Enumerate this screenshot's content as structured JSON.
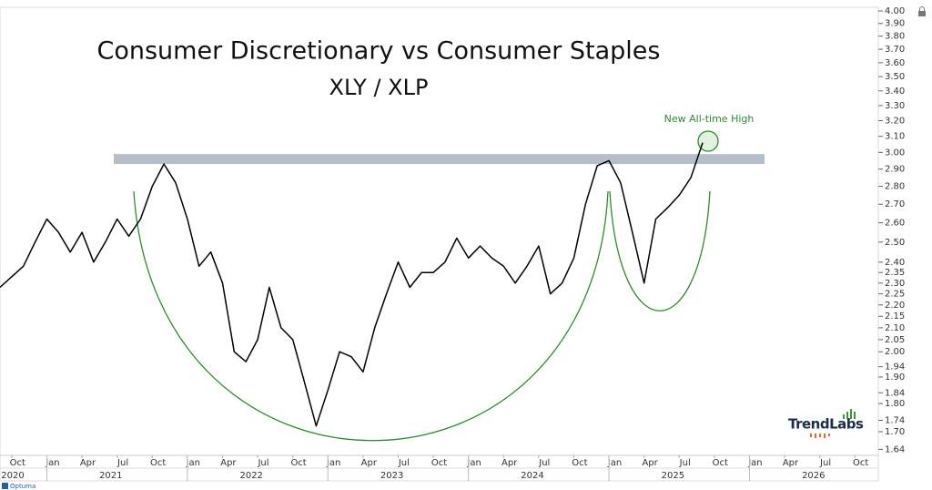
{
  "chart_data": {
    "type": "line",
    "title": "Consumer Discretionary vs Consumer Staples",
    "subtitle": "XLY / XLP",
    "annotation": "New All-time High",
    "brand": "TrendLabs",
    "source": "Optuma",
    "color": "#000000",
    "log_y": true,
    "x": [
      "2020-09",
      "2020-10",
      "2020-11",
      "2020-12",
      "2021-01",
      "2021-02",
      "2021-03",
      "2021-04",
      "2021-05",
      "2021-06",
      "2021-07",
      "2021-08",
      "2021-09",
      "2021-10",
      "2021-11",
      "2021-12",
      "2022-01",
      "2022-02",
      "2022-03",
      "2022-04",
      "2022-05",
      "2022-06",
      "2022-07",
      "2022-08",
      "2022-09",
      "2022-10",
      "2022-11",
      "2022-12",
      "2023-01",
      "2023-02",
      "2023-03",
      "2023-04",
      "2023-05",
      "2023-06",
      "2023-07",
      "2023-08",
      "2023-09",
      "2023-10",
      "2023-11",
      "2023-12",
      "2024-01",
      "2024-02",
      "2024-03",
      "2024-04",
      "2024-05",
      "2024-06",
      "2024-07",
      "2024-08",
      "2024-09",
      "2024-10",
      "2024-11",
      "2024-12",
      "2025-01",
      "2025-02",
      "2025-03",
      "2025-04",
      "2025-05",
      "2025-06",
      "2025-07",
      "2025-08",
      "2025-09"
    ],
    "values": [
      2.28,
      2.33,
      2.38,
      2.5,
      2.62,
      2.55,
      2.45,
      2.55,
      2.4,
      2.5,
      2.62,
      2.53,
      2.62,
      2.8,
      2.93,
      2.82,
      2.62,
      2.38,
      2.45,
      2.3,
      2.0,
      1.96,
      2.05,
      2.28,
      2.1,
      2.05,
      1.88,
      1.72,
      1.85,
      2.0,
      1.98,
      1.92,
      2.1,
      2.25,
      2.4,
      2.28,
      2.35,
      2.35,
      2.4,
      2.52,
      2.42,
      2.48,
      2.42,
      2.38,
      2.3,
      2.38,
      2.48,
      2.25,
      2.3,
      2.42,
      2.7,
      2.92,
      2.95,
      2.82,
      2.55,
      2.3,
      2.62,
      2.68,
      2.75,
      2.85,
      3.06
    ],
    "resistance_band": [
      2.93,
      2.99
    ],
    "xlim": [
      "2020-09",
      "2026-12"
    ],
    "xticks": [
      {
        "value": "2020-10",
        "label": "Oct"
      },
      {
        "value": "2021-01",
        "label": "Jan"
      },
      {
        "value": "2021-04",
        "label": "Apr"
      },
      {
        "value": "2021-07",
        "label": "Jul"
      },
      {
        "value": "2021-10",
        "label": "Oct"
      },
      {
        "value": "2022-01",
        "label": "Jan"
      },
      {
        "value": "2022-04",
        "label": "Apr"
      },
      {
        "value": "2022-07",
        "label": "Jul"
      },
      {
        "value": "2022-10",
        "label": "Oct"
      },
      {
        "value": "2023-01",
        "label": "Jan"
      },
      {
        "value": "2023-04",
        "label": "Apr"
      },
      {
        "value": "2023-07",
        "label": "Jul"
      },
      {
        "value": "2023-10",
        "label": "Oct"
      },
      {
        "value": "2024-01",
        "label": "Jan"
      },
      {
        "value": "2024-04",
        "label": "Apr"
      },
      {
        "value": "2024-07",
        "label": "Jul"
      },
      {
        "value": "2024-10",
        "label": "Oct"
      },
      {
        "value": "2025-01",
        "label": "Jan"
      },
      {
        "value": "2025-04",
        "label": "Apr"
      },
      {
        "value": "2025-07",
        "label": "Jul"
      },
      {
        "value": "2025-10",
        "label": "Oct"
      },
      {
        "value": "2026-01",
        "label": "Jan"
      },
      {
        "value": "2026-04",
        "label": "Apr"
      },
      {
        "value": "2026-07",
        "label": "Jul"
      },
      {
        "value": "2026-10",
        "label": "Oct"
      }
    ],
    "year_labels": [
      "2020",
      "2021",
      "2022",
      "2023",
      "2024",
      "2025",
      "2026"
    ],
    "ylim": [
      1.62,
      4.03
    ],
    "yticks": [
      1.64,
      {
        "value": 1.7,
        "label": "1.70"
      },
      1.74,
      {
        "value": 1.8,
        "label": "1.80"
      },
      1.84,
      {
        "value": 1.9,
        "label": "1.90"
      },
      1.94,
      {
        "value": 2,
        "label": "2.00"
      },
      2.05,
      {
        "value": 2.1,
        "label": "2.10"
      },
      2.15,
      {
        "value": 2.2,
        "label": "2.20"
      },
      2.25,
      {
        "value": 2.3,
        "label": "2.30"
      },
      2.35,
      {
        "value": 2.4,
        "label": "2.40"
      },
      {
        "value": 2.5,
        "label": "2.50"
      },
      {
        "value": 2.6,
        "label": "2.60"
      },
      {
        "value": 2.7,
        "label": "2.70"
      },
      {
        "value": 2.8,
        "label": "2.80"
      },
      {
        "value": 2.9,
        "label": "2.90"
      },
      {
        "value": 3,
        "label": "3.00"
      },
      {
        "value": 3.1,
        "label": "3.10"
      },
      {
        "value": 3.2,
        "label": "3.20"
      },
      {
        "value": 3.3,
        "label": "3.30"
      },
      {
        "value": 3.4,
        "label": "3.40"
      },
      {
        "value": 3.5,
        "label": "3.50"
      },
      {
        "value": 3.6,
        "label": "3.60"
      },
      {
        "value": 3.7,
        "label": "3.70"
      },
      {
        "value": 3.8,
        "label": "3.80"
      },
      {
        "value": 3.9,
        "label": "3.90"
      },
      {
        "value": 4,
        "label": "4.00"
      }
    ]
  }
}
